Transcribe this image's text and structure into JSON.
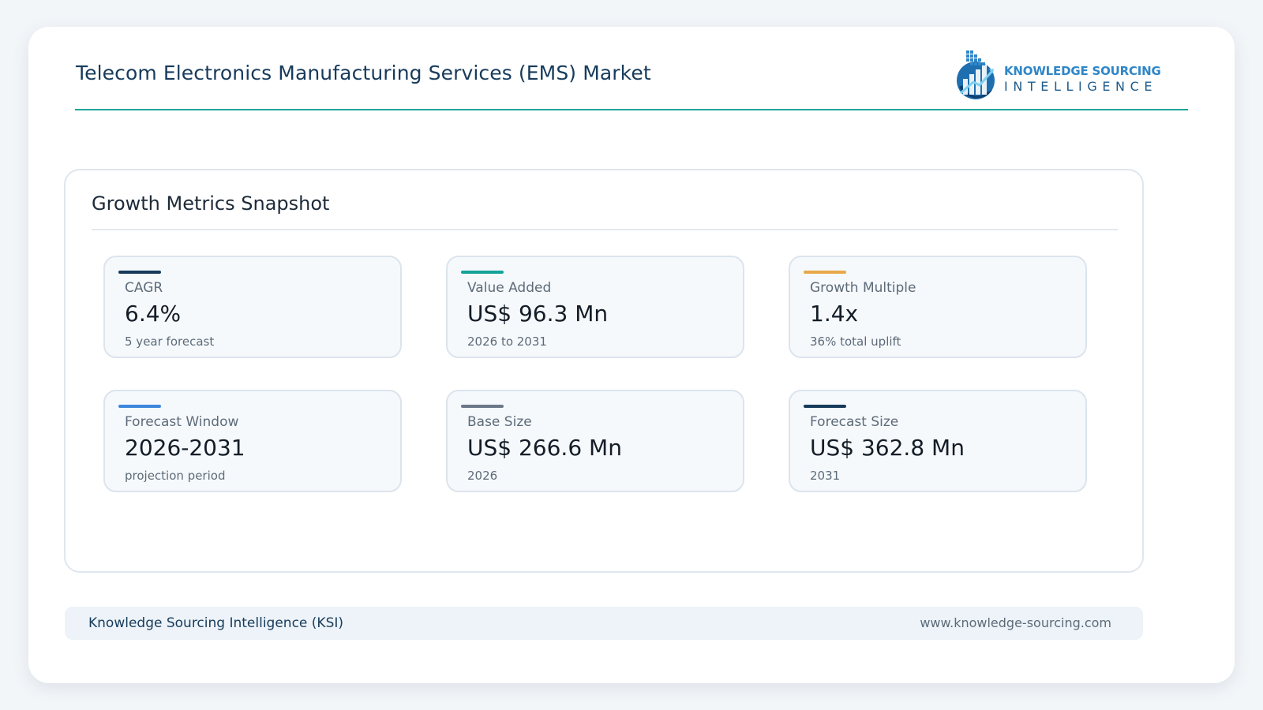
{
  "header": {
    "title": "Telecom Electronics Manufacturing Services (EMS) Market",
    "logo": {
      "line1": "KNOWLEDGE SOURCING",
      "line2": "INTELLIGENCE",
      "icon": "bar-chart-globe-icon"
    },
    "rule_color": "#1ea59a"
  },
  "panel": {
    "title": "Growth Metrics Snapshot",
    "metrics": [
      {
        "label": "CAGR",
        "value": "6.4%",
        "note": "5 year forecast",
        "accent": "#163a5a"
      },
      {
        "label": "Value Added",
        "value": "US$ 96.3 Mn",
        "note": "2026 to 2031",
        "accent": "#14a39a"
      },
      {
        "label": "Growth Multiple",
        "value": "1.4x",
        "note": "36% total uplift",
        "accent": "#e8a84a"
      },
      {
        "label": "Forecast Window",
        "value": "2026-2031",
        "note": "projection period",
        "accent": "#3d87dd"
      },
      {
        "label": "Base Size",
        "value": "US$ 266.6 Mn",
        "note": "2026",
        "accent": "#6a7888"
      },
      {
        "label": "Forecast Size",
        "value": "US$ 362.8 Mn",
        "note": "2031",
        "accent": "#163a5a"
      }
    ]
  },
  "footer": {
    "left": "Knowledge Sourcing Intelligence (KSI)",
    "right": "www.knowledge-sourcing.com"
  }
}
